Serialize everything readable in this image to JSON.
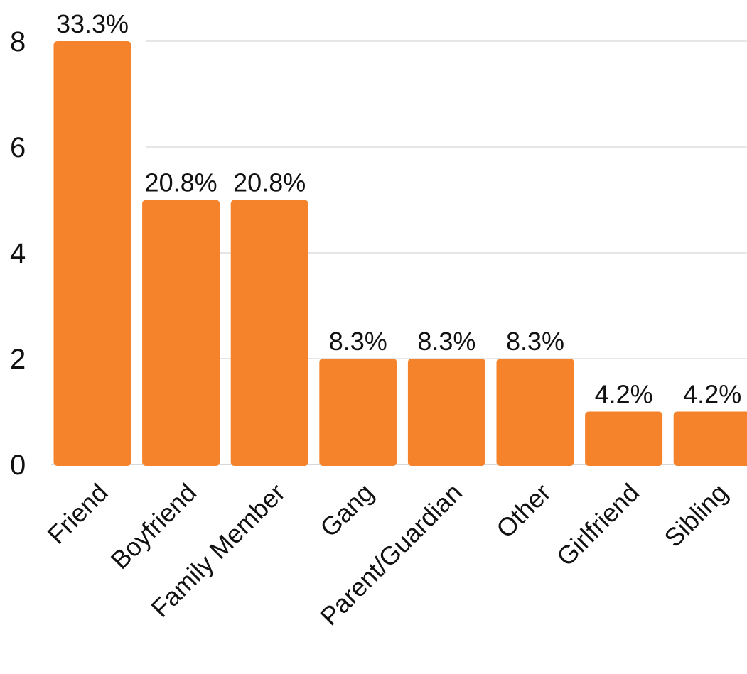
{
  "chart_data": {
    "type": "bar",
    "categories": [
      "Friend",
      "Boyfriend",
      "Family Member",
      "Gang",
      "Parent/Guardian",
      "Other",
      "Girlfriend",
      "Sibling"
    ],
    "values": [
      8,
      5,
      5,
      2,
      2,
      2,
      1,
      1
    ],
    "data_labels": [
      "33.3%",
      "20.8%",
      "20.8%",
      "8.3%",
      "8.3%",
      "8.3%",
      "4.2%",
      "4.2%"
    ],
    "y_ticks": [
      "0",
      "2",
      "4",
      "6",
      "8"
    ],
    "ylim": [
      0,
      8
    ],
    "grid": true,
    "bar_color": "#f5832b",
    "grid_color": "#dddddd",
    "title": "",
    "xlabel": "",
    "ylabel": ""
  }
}
